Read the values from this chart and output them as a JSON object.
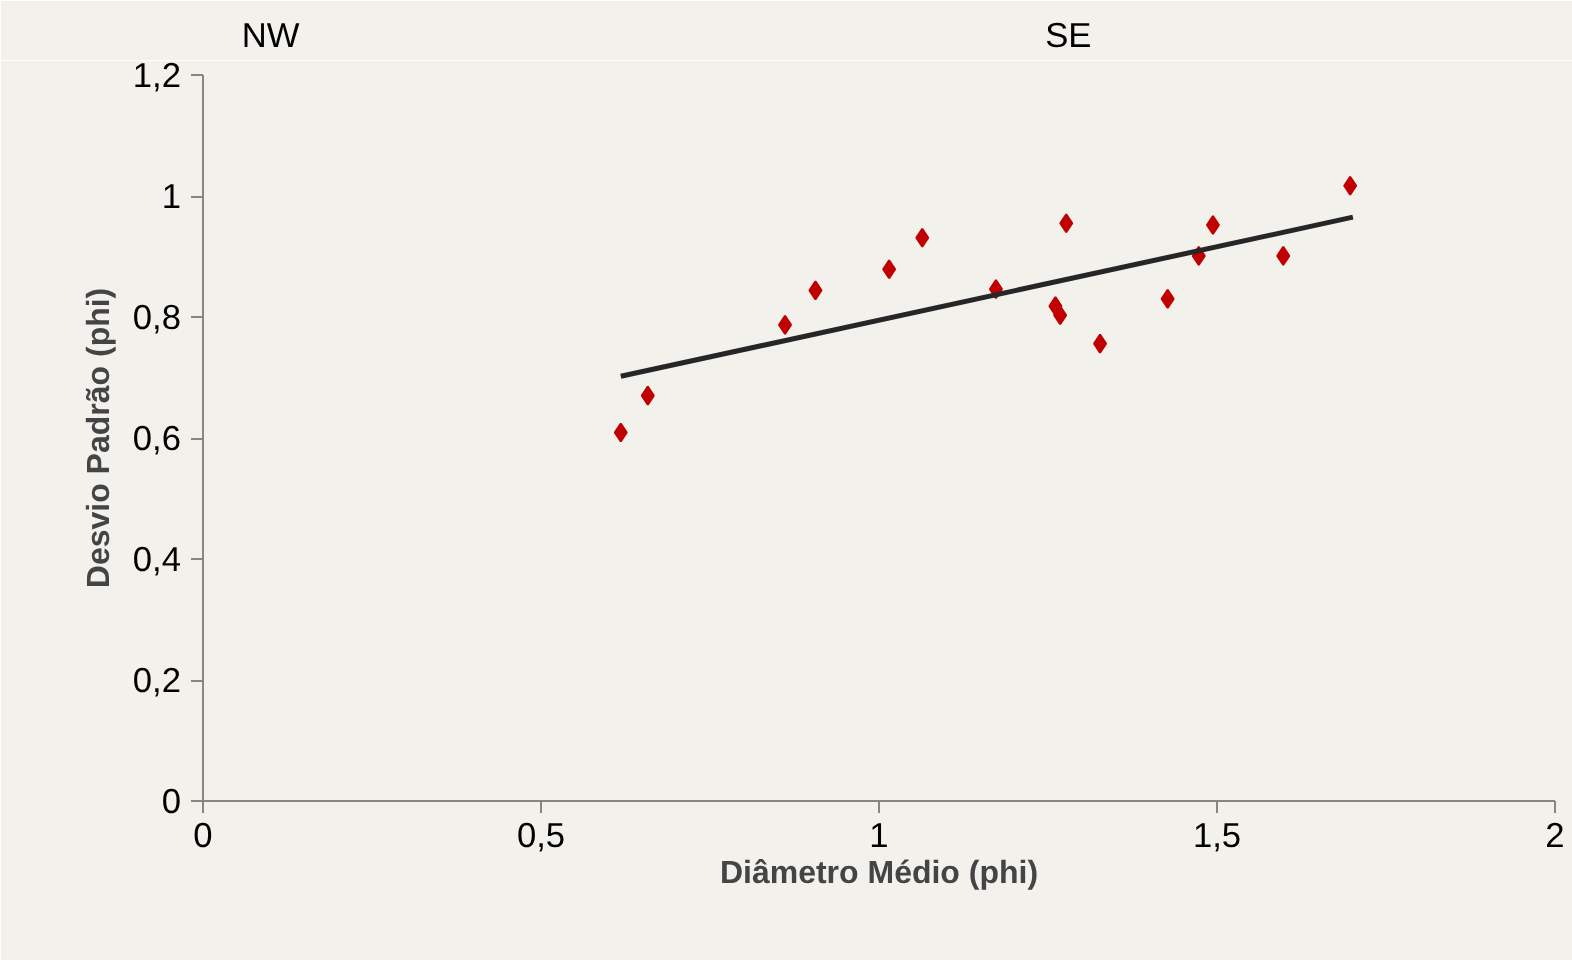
{
  "chart_data": {
    "type": "scatter",
    "xlabel": "Diâmetro Médio (phi)",
    "ylabel": "Desvio Padrão (phi)",
    "annotations": [
      "NW",
      "SE"
    ],
    "xlim": [
      0,
      2
    ],
    "xticks": [
      {
        "value": 0,
        "label": "0"
      },
      {
        "value": 0.5,
        "label": "0,5"
      },
      {
        "value": 1,
        "label": "1"
      },
      {
        "value": 1.5,
        "label": "1,5"
      },
      {
        "value": 2,
        "label": "2"
      }
    ],
    "ylim": [
      0,
      1.2
    ],
    "yticks": [
      {
        "value": 0,
        "label": "0"
      },
      {
        "value": 0.2,
        "label": "0,2"
      },
      {
        "value": 0.4,
        "label": "0,4"
      },
      {
        "value": 0.6,
        "label": "0,6"
      },
      {
        "value": 0.8,
        "label": "0,8"
      },
      {
        "value": 1,
        "label": "1"
      },
      {
        "value": 1.2,
        "label": "1,2"
      }
    ],
    "grid": false,
    "series": [
      {
        "marker": "diamond",
        "color": "#c00000",
        "x": [
          0.618,
          0.658,
          0.861,
          0.906,
          1.015,
          1.064,
          1.173,
          1.261,
          1.268,
          1.277,
          1.327,
          1.427,
          1.473,
          1.494,
          1.598,
          1.697
        ],
        "values": [
          0.609,
          0.67,
          0.787,
          0.844,
          0.879,
          0.931,
          0.846,
          0.818,
          0.803,
          0.955,
          0.756,
          0.83,
          0.901,
          0.952,
          0.901,
          1.017
        ]
      },
      {
        "type": "line",
        "color": "#262626",
        "x": [
          0.618,
          1.701
        ],
        "values": [
          0.702,
          0.965
        ]
      }
    ]
  }
}
